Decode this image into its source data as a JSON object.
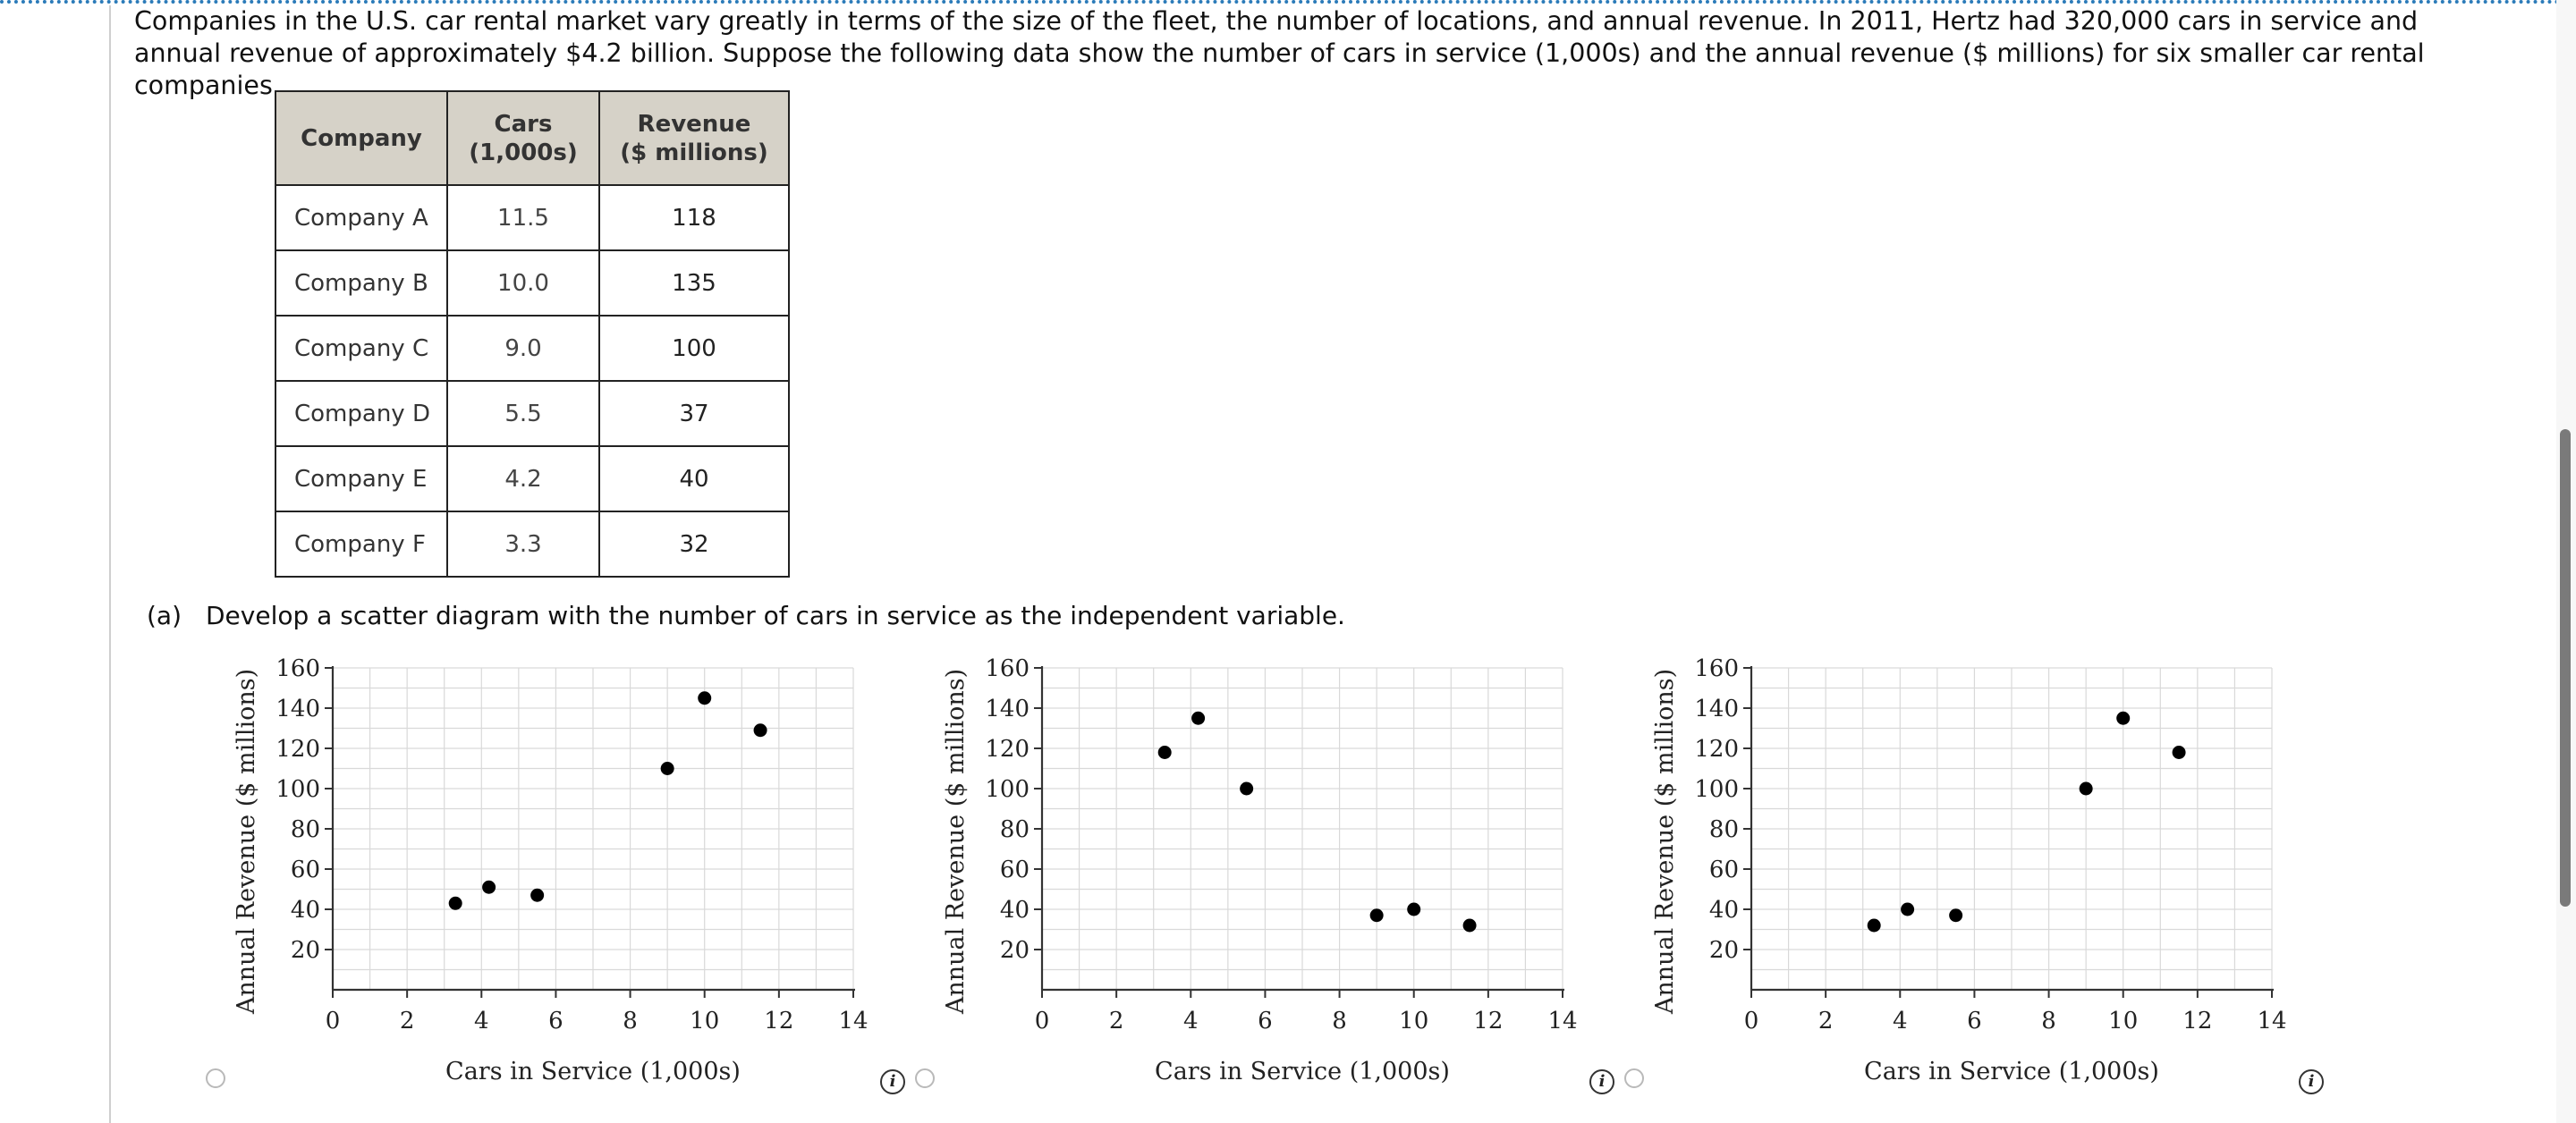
{
  "intro_text": "Companies in the U.S. car rental market vary greatly in terms of the size of the fleet, the number of locations, and annual revenue. In 2011, Hertz had 320,000 cars in service and annual revenue of approximately $4.2 billion. Suppose the following data show the number of cars in service (1,000s) and the annual revenue ($ millions) for six smaller car rental companies.",
  "table": {
    "headers": {
      "company": "Company",
      "cars_line1": "Cars",
      "cars_line2": "(1,000s)",
      "revenue_line1": "Revenue",
      "revenue_line2": "($ millions)"
    },
    "rows": [
      {
        "company": "Company A",
        "cars": "11.5",
        "revenue": "118"
      },
      {
        "company": "Company B",
        "cars": "10.0",
        "revenue": "135"
      },
      {
        "company": "Company C",
        "cars": "9.0",
        "revenue": "100"
      },
      {
        "company": "Company D",
        "cars": "5.5",
        "revenue": "37"
      },
      {
        "company": "Company E",
        "cars": "4.2",
        "revenue": "40"
      },
      {
        "company": "Company F",
        "cars": "3.3",
        "revenue": "32"
      }
    ]
  },
  "part_a": {
    "label": "(a)",
    "prompt": "Develop a scatter diagram with the number of cars in service as the independent variable."
  },
  "chart_data": [
    {
      "type": "scatter",
      "xlabel": "Cars in Service (1,000s)",
      "ylabel": "Annual Revenue ($ millions)",
      "xlim": [
        0,
        14
      ],
      "ylim": [
        0,
        160
      ],
      "xticks": [
        0,
        2,
        4,
        6,
        8,
        10,
        12,
        14
      ],
      "yticks": [
        20,
        40,
        60,
        80,
        100,
        120,
        140,
        160
      ],
      "grid": true,
      "points": [
        [
          3.3,
          43
        ],
        [
          4.2,
          51
        ],
        [
          5.5,
          47
        ],
        [
          9.0,
          110
        ],
        [
          10.0,
          145
        ],
        [
          11.5,
          129
        ]
      ]
    },
    {
      "type": "scatter",
      "xlabel": "Cars in Service (1,000s)",
      "ylabel": "Annual Revenue ($ millions)",
      "xlim": [
        0,
        14
      ],
      "ylim": [
        0,
        160
      ],
      "xticks": [
        0,
        2,
        4,
        6,
        8,
        10,
        12,
        14
      ],
      "yticks": [
        20,
        40,
        60,
        80,
        100,
        120,
        140,
        160
      ],
      "grid": true,
      "points": [
        [
          3.3,
          118
        ],
        [
          4.2,
          135
        ],
        [
          5.5,
          100
        ],
        [
          9.0,
          37
        ],
        [
          10.0,
          40
        ],
        [
          11.5,
          32
        ]
      ]
    },
    {
      "type": "scatter",
      "xlabel": "Cars in Service (1,000s)",
      "ylabel": "Annual Revenue ($ millions)",
      "xlim": [
        0,
        14
      ],
      "ylim": [
        0,
        160
      ],
      "xticks": [
        0,
        2,
        4,
        6,
        8,
        10,
        12,
        14
      ],
      "yticks": [
        20,
        40,
        60,
        80,
        100,
        120,
        140,
        160
      ],
      "grid": true,
      "points": [
        [
          3.3,
          32
        ],
        [
          4.2,
          40
        ],
        [
          5.5,
          37
        ],
        [
          9.0,
          100
        ],
        [
          10.0,
          135
        ],
        [
          11.5,
          118
        ]
      ]
    }
  ],
  "info_icon_glyph": "i",
  "colors": {
    "header_bg": "#d6d2c8",
    "grid": "#d9d9d9",
    "point": "#000000",
    "top_border": "#2b7bb9"
  }
}
